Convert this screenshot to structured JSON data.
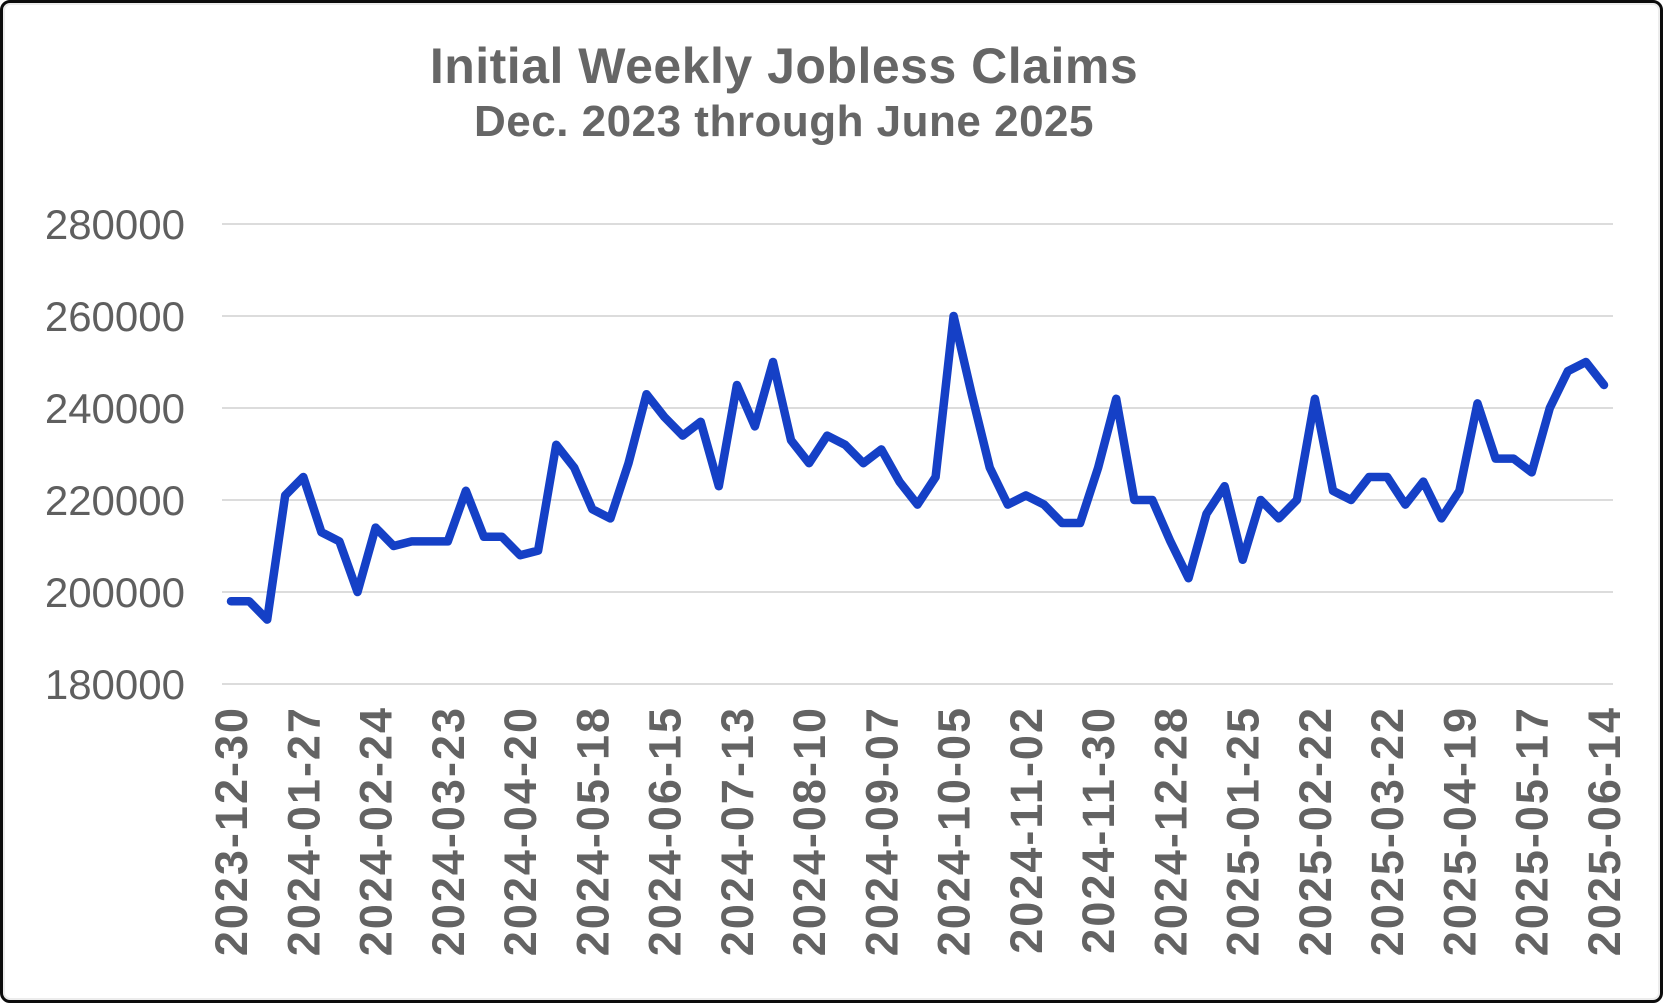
{
  "title": "Initial Weekly Jobless Claims",
  "subtitle": "Dec. 2023 through June 2025",
  "chart_data": {
    "type": "line",
    "title": "Initial Weekly Jobless Claims",
    "subtitle": "Dec. 2023 through June 2025",
    "series_name": "Initial weekly jobless claims",
    "xlabel": "",
    "ylabel": "",
    "ylim": [
      180000,
      280000
    ],
    "y_ticks": [
      180000,
      200000,
      220000,
      240000,
      260000,
      280000
    ],
    "grid": true,
    "legend": "none",
    "line_color": "#1540C6",
    "grid_color": "#dcdcdc",
    "tick_label_color": "#5f5f5f",
    "title_color": "#666666",
    "x_tick_labels": [
      "2023-12-30",
      "2024-01-27",
      "2024-02-24",
      "2024-03-23",
      "2024-04-20",
      "2024-05-18",
      "2024-06-15",
      "2024-07-13",
      "2024-08-10",
      "2024-09-07",
      "2024-10-05",
      "2024-11-02",
      "2024-11-30",
      "2024-12-28",
      "2025-01-25",
      "2025-02-22",
      "2025-03-22",
      "2025-04-19",
      "2025-05-17",
      "2025-06-14"
    ],
    "x": [
      "2023-12-30",
      "2024-01-06",
      "2024-01-13",
      "2024-01-20",
      "2024-01-27",
      "2024-02-03",
      "2024-02-10",
      "2024-02-17",
      "2024-02-24",
      "2024-03-02",
      "2024-03-09",
      "2024-03-16",
      "2024-03-23",
      "2024-03-30",
      "2024-04-06",
      "2024-04-13",
      "2024-04-20",
      "2024-04-27",
      "2024-05-04",
      "2024-05-11",
      "2024-05-18",
      "2024-05-25",
      "2024-06-01",
      "2024-06-08",
      "2024-06-15",
      "2024-06-22",
      "2024-06-29",
      "2024-07-06",
      "2024-07-13",
      "2024-07-20",
      "2024-07-27",
      "2024-08-03",
      "2024-08-10",
      "2024-08-17",
      "2024-08-24",
      "2024-08-31",
      "2024-09-07",
      "2024-09-14",
      "2024-09-21",
      "2024-09-28",
      "2024-10-05",
      "2024-10-12",
      "2024-10-19",
      "2024-10-26",
      "2024-11-02",
      "2024-11-09",
      "2024-11-16",
      "2024-11-23",
      "2024-11-30",
      "2024-12-07",
      "2024-12-14",
      "2024-12-21",
      "2024-12-28",
      "2025-01-04",
      "2025-01-11",
      "2025-01-18",
      "2025-01-25",
      "2025-02-01",
      "2025-02-08",
      "2025-02-15",
      "2025-02-22",
      "2025-03-01",
      "2025-03-08",
      "2025-03-15",
      "2025-03-22",
      "2025-03-29",
      "2025-04-05",
      "2025-04-12",
      "2025-04-19",
      "2025-04-26",
      "2025-05-03",
      "2025-05-10",
      "2025-05-17",
      "2025-05-24",
      "2025-05-31",
      "2025-06-07",
      "2025-06-14"
    ],
    "values": [
      198000,
      198000,
      194000,
      221000,
      225000,
      213000,
      211000,
      200000,
      214000,
      210000,
      211000,
      211000,
      211000,
      222000,
      212000,
      212000,
      208000,
      209000,
      232000,
      227000,
      218000,
      216000,
      228000,
      243000,
      238000,
      234000,
      237000,
      223000,
      245000,
      236000,
      250000,
      233000,
      228000,
      234000,
      232000,
      228000,
      231000,
      224000,
      219000,
      225000,
      260000,
      243000,
      227000,
      219000,
      221000,
      219000,
      215000,
      215000,
      227000,
      242000,
      220000,
      220000,
      211000,
      203000,
      217000,
      223000,
      207000,
      220000,
      216000,
      220000,
      242000,
      222000,
      220000,
      225000,
      225000,
      219000,
      224000,
      216000,
      222000,
      241000,
      229000,
      229000,
      226000,
      240000,
      248000,
      250000,
      245000
    ]
  }
}
